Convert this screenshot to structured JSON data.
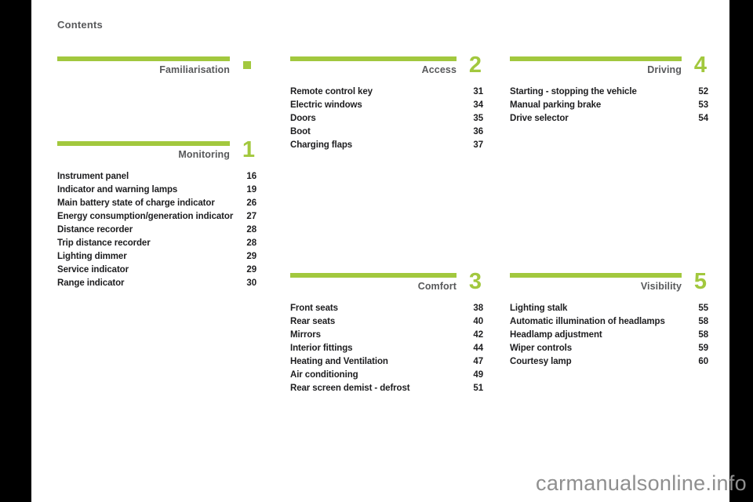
{
  "page": {
    "heading": "Contents",
    "watermark": "carmanualsonline.info"
  },
  "colors": {
    "accent_green": "#a2c83e",
    "bar_black": "#000000",
    "title_gray": "#58595b",
    "text_dark": "#1d1d1f",
    "watermark_gray": "#8f8f8f"
  },
  "sections": [
    {
      "title": "Familiarisation",
      "chapter": "",
      "items": []
    },
    {
      "title": "Monitoring",
      "chapter": "1",
      "items": [
        {
          "label": "Instrument panel",
          "page": "16"
        },
        {
          "label": "Indicator and warning lamps",
          "page": "19"
        },
        {
          "label": "Main battery state of charge indicator",
          "page": "26"
        },
        {
          "label": "Energy consumption/generation indicator",
          "page": "27"
        },
        {
          "label": "Distance recorder",
          "page": "28"
        },
        {
          "label": "Trip distance recorder",
          "page": "28"
        },
        {
          "label": "Lighting dimmer",
          "page": "29"
        },
        {
          "label": "Service indicator",
          "page": "29"
        },
        {
          "label": "Range indicator",
          "page": "30"
        }
      ]
    },
    {
      "title": "Access",
      "chapter": "2",
      "items": [
        {
          "label": "Remote control key",
          "page": "31"
        },
        {
          "label": "Electric windows",
          "page": "34"
        },
        {
          "label": "Doors",
          "page": "35"
        },
        {
          "label": "Boot",
          "page": "36"
        },
        {
          "label": "Charging flaps",
          "page": "37"
        }
      ]
    },
    {
      "title": "Comfort",
      "chapter": "3",
      "items": [
        {
          "label": "Front seats",
          "page": "38"
        },
        {
          "label": "Rear seats",
          "page": "40"
        },
        {
          "label": "Mirrors",
          "page": "42"
        },
        {
          "label": "Interior fittings",
          "page": "44"
        },
        {
          "label": "Heating and Ventilation",
          "page": "47"
        },
        {
          "label": "Air conditioning",
          "page": "49"
        },
        {
          "label": "Rear screen demist - defrost",
          "page": "51"
        }
      ]
    },
    {
      "title": "Driving",
      "chapter": "4",
      "items": [
        {
          "label": "Starting - stopping the vehicle",
          "page": "52"
        },
        {
          "label": "Manual parking brake",
          "page": "53"
        },
        {
          "label": "Drive selector",
          "page": "54"
        }
      ]
    },
    {
      "title": "Visibility",
      "chapter": "5",
      "items": [
        {
          "label": "Lighting stalk",
          "page": "55"
        },
        {
          "label": "Automatic illumination of headlamps",
          "page": "58"
        },
        {
          "label": "Headlamp adjustment",
          "page": "58"
        },
        {
          "label": "Wiper controls",
          "page": "59"
        },
        {
          "label": "Courtesy lamp",
          "page": "60"
        }
      ]
    }
  ]
}
